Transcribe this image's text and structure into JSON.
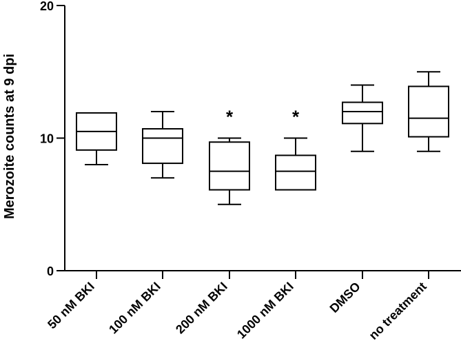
{
  "chart_data": {
    "type": "boxplot",
    "title": "",
    "xlabel": "",
    "ylabel": "Merozoite counts at 9 dpi",
    "ylim": [
      0,
      20
    ],
    "yticks": [
      0,
      10,
      20
    ],
    "y_tick_labels": [
      "0",
      "10",
      "20"
    ],
    "categories": [
      "50 nM BKI",
      "100 nM BKI",
      "200 nM BKI",
      "1000 nM BKI",
      "DMSO",
      "no treatment"
    ],
    "boxes": [
      {
        "name": "50 nM BKI",
        "min": 8,
        "q1": 9.1,
        "median": 10.5,
        "q3": 11.9,
        "max": 11.9,
        "significance": ""
      },
      {
        "name": "100 nM BKI",
        "min": 7,
        "q1": 8.1,
        "median": 10,
        "q3": 10.7,
        "max": 12,
        "significance": ""
      },
      {
        "name": "200 nM BKI",
        "min": 5,
        "q1": 6.1,
        "median": 7.5,
        "q3": 9.7,
        "max": 10,
        "significance": "*"
      },
      {
        "name": "1000 nM BKI",
        "min": 6.1,
        "q1": 6.1,
        "median": 7.5,
        "q3": 8.7,
        "max": 10,
        "significance": "*"
      },
      {
        "name": "DMSO",
        "min": 9,
        "q1": 11.1,
        "median": 12,
        "q3": 12.7,
        "max": 14,
        "significance": ""
      },
      {
        "name": "no treatment",
        "min": 9,
        "q1": 10.1,
        "median": 11.5,
        "q3": 13.9,
        "max": 15,
        "significance": ""
      }
    ],
    "grid": false,
    "legend": "none"
  }
}
